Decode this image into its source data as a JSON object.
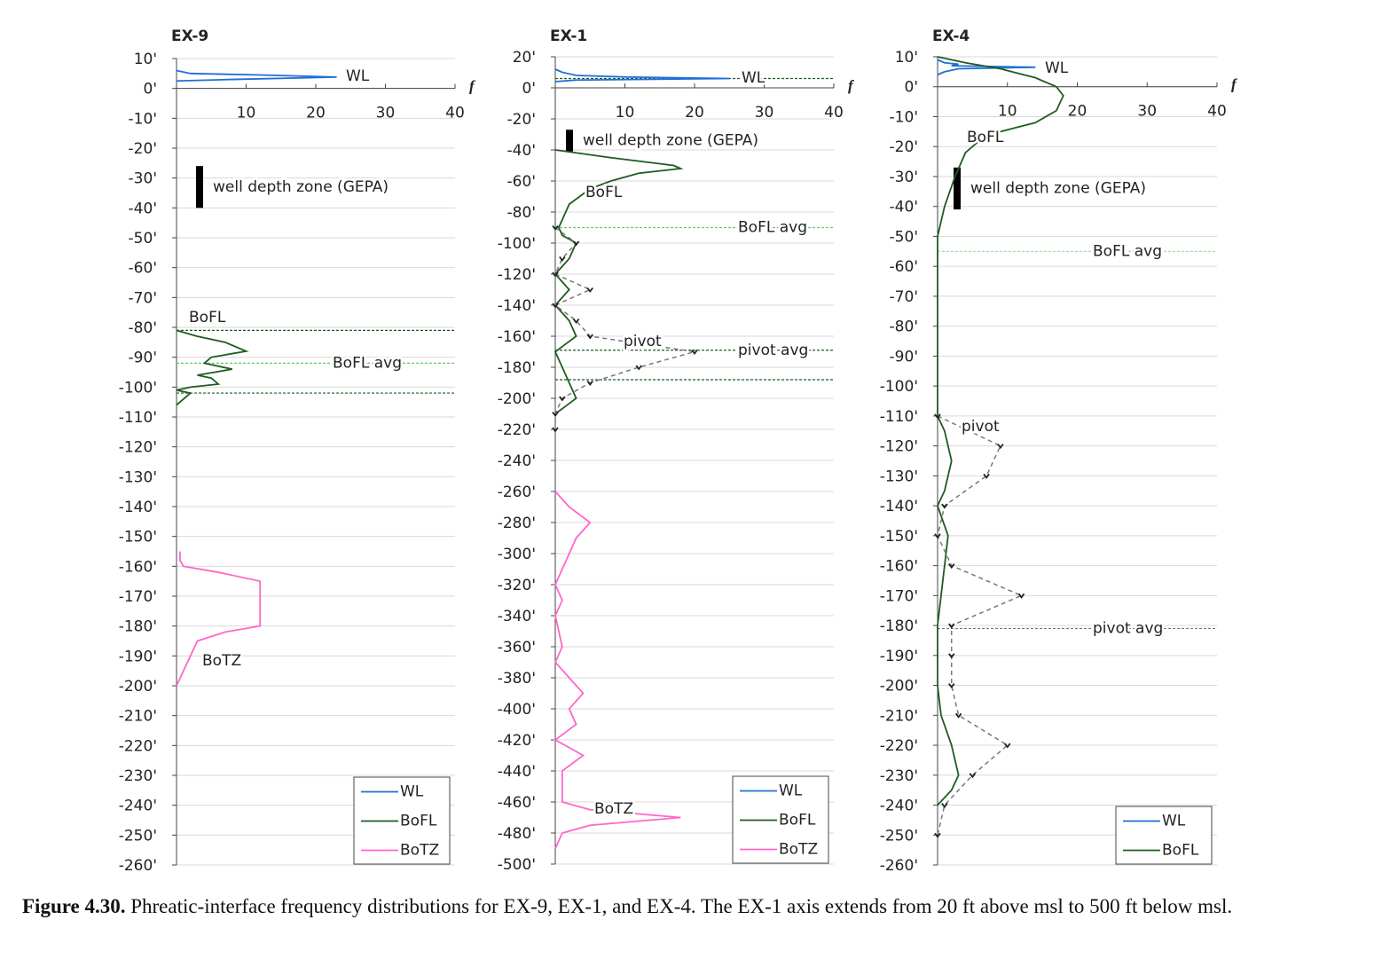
{
  "chart_data": [
    {
      "type": "line",
      "title": "EX-9",
      "x_label": "f",
      "xlim": [
        0,
        40
      ],
      "xticks": [
        10,
        20,
        30,
        40
      ],
      "ylim": [
        -260,
        10
      ],
      "grid": true,
      "legend": "lower right",
      "yticks": [
        {
          "value": 10,
          "label": "10'"
        },
        {
          "value": 0,
          "label": "0'"
        },
        {
          "value": -10,
          "label": "-10'"
        },
        {
          "value": -20,
          "label": "-20'"
        },
        {
          "value": -30,
          "label": "-30'"
        },
        {
          "value": -40,
          "label": "-40'"
        },
        {
          "value": -50,
          "label": "-50'"
        },
        {
          "value": -60,
          "label": "-60'"
        },
        {
          "value": -70,
          "label": "-70'"
        },
        {
          "value": -80,
          "label": "-80'"
        },
        {
          "value": -90,
          "label": "-90'"
        },
        {
          "value": -100,
          "label": "-100'"
        },
        {
          "value": -110,
          "label": "-110'"
        },
        {
          "value": -120,
          "label": "-120'"
        },
        {
          "value": -130,
          "label": "-130'"
        },
        {
          "value": -140,
          "label": "-140'"
        },
        {
          "value": -150,
          "label": "-150'"
        },
        {
          "value": -160,
          "label": "-160'"
        },
        {
          "value": -170,
          "label": "-170'"
        },
        {
          "value": -180,
          "label": "-180'"
        },
        {
          "value": -190,
          "label": "-190'"
        },
        {
          "value": -200,
          "label": "-200'"
        },
        {
          "value": -210,
          "label": "-210'"
        },
        {
          "value": -220,
          "label": "-220'"
        },
        {
          "value": -230,
          "label": "-230'"
        },
        {
          "value": -240,
          "label": "-240'"
        },
        {
          "value": -250,
          "label": "-250'"
        },
        {
          "value": -260,
          "label": "-260'"
        }
      ],
      "well_depth_zone": {
        "label": "well depth zone (GEPA)",
        "top": -26,
        "bottom": -40
      },
      "series": [
        {
          "name": "WL",
          "color": "#1f6fd6",
          "in_legend": true,
          "y": [
            6,
            5,
            4.5,
            3.8,
            3,
            2.5
          ],
          "values": [
            0,
            2,
            12,
            23,
            8,
            0
          ]
        },
        {
          "name": "BoFL",
          "color": "#1f5c1f",
          "in_legend": true,
          "y": [
            -81,
            -83,
            -85,
            -88,
            -90,
            -92,
            -94,
            -96,
            -97,
            -99,
            -100,
            -101,
            -102,
            -104,
            -106
          ],
          "values": [
            0,
            3,
            7,
            10,
            5,
            4,
            8,
            3,
            5,
            6,
            2,
            0,
            2,
            1,
            0
          ]
        },
        {
          "name": "BoTZ",
          "color": "#ff66cc",
          "in_legend": true,
          "y": [
            -155,
            -158,
            -160,
            -162,
            -165,
            -170,
            -175,
            -180,
            -182,
            -185,
            -190,
            -195,
            -200
          ],
          "values": [
            0.5,
            0.5,
            1,
            6,
            12,
            12,
            12,
            12,
            7,
            3,
            2,
            1,
            0
          ]
        }
      ],
      "hlines": [
        {
          "y": -81,
          "color": "#1f5c1f"
        },
        {
          "y": -92,
          "color": "#66cc66",
          "label": "BoFL avg",
          "label_color": "#1f5c1f"
        },
        {
          "y": -102,
          "color": "#1f5c1f"
        }
      ]
    },
    {
      "type": "line",
      "title": "EX-1",
      "x_label": "f",
      "xlim": [
        0,
        40
      ],
      "xticks": [
        10,
        20,
        30,
        40
      ],
      "ylim": [
        -500,
        20
      ],
      "grid": true,
      "legend": "lower right",
      "yticks": [
        {
          "value": 20,
          "label": "20'"
        },
        {
          "value": 0,
          "label": "0'"
        },
        {
          "value": -20,
          "label": "-20'"
        },
        {
          "value": -40,
          "label": "-40'"
        },
        {
          "value": -60,
          "label": "-60'"
        },
        {
          "value": -80,
          "label": "-80'"
        },
        {
          "value": -100,
          "label": "-100'"
        },
        {
          "value": -120,
          "label": "-120'"
        },
        {
          "value": -140,
          "label": "-140'"
        },
        {
          "value": -160,
          "label": "-160'"
        },
        {
          "value": -180,
          "label": "-180'"
        },
        {
          "value": -200,
          "label": "-200'"
        },
        {
          "value": -220,
          "label": "-220'"
        },
        {
          "value": -240,
          "label": "-240'"
        },
        {
          "value": -260,
          "label": "-260'"
        },
        {
          "value": -280,
          "label": "-280'"
        },
        {
          "value": -300,
          "label": "-300'"
        },
        {
          "value": -320,
          "label": "-320'"
        },
        {
          "value": -340,
          "label": "-340'"
        },
        {
          "value": -360,
          "label": "-360'"
        },
        {
          "value": -380,
          "label": "-380'"
        },
        {
          "value": -400,
          "label": "-400'"
        },
        {
          "value": -420,
          "label": "-420'"
        },
        {
          "value": -440,
          "label": "-440'"
        },
        {
          "value": -460,
          "label": "-460'"
        },
        {
          "value": -480,
          "label": "-480'"
        },
        {
          "value": -500,
          "label": "-500'"
        }
      ],
      "well_depth_zone": {
        "label": "well depth zone (GEPA)",
        "top": -27,
        "bottom": -41
      },
      "series": [
        {
          "name": "WL",
          "color": "#1f6fd6",
          "in_legend": true,
          "y": [
            12,
            10,
            8,
            7,
            6,
            5,
            4
          ],
          "values": [
            0,
            1,
            3,
            10,
            25,
            3,
            0
          ]
        },
        {
          "name": "BoFL",
          "color": "#1f5c1f",
          "in_legend": true,
          "y": [
            -40,
            -45,
            -50,
            -52,
            -55,
            -60,
            -65,
            -75,
            -85,
            -90,
            -95,
            -100,
            -110,
            -120,
            -130,
            -140,
            -150,
            -160,
            -170,
            -180,
            -190,
            -200,
            -210
          ],
          "values": [
            0,
            8,
            17,
            18,
            12,
            8,
            5,
            2,
            1,
            0.5,
            1,
            3,
            2,
            0,
            2,
            0,
            2,
            3,
            0,
            1,
            2,
            3,
            0
          ]
        },
        {
          "name": "pivot",
          "color": "#777777",
          "dash": true,
          "markers": true,
          "in_legend": false,
          "y": [
            -90,
            -100,
            -110,
            -120,
            -130,
            -140,
            -150,
            -160,
            -170,
            -180,
            -190,
            -200,
            -210,
            -220
          ],
          "values": [
            0,
            3,
            1,
            0,
            5,
            0,
            3,
            5,
            20,
            12,
            5,
            1,
            0,
            0
          ]
        },
        {
          "name": "BoTZ",
          "color": "#ff66cc",
          "in_legend": true,
          "y": [
            -260,
            -270,
            -280,
            -290,
            -300,
            -320,
            -330,
            -340,
            -360,
            -370,
            -380,
            -390,
            -400,
            -410,
            -420,
            -430,
            -440,
            -460,
            -465,
            -470,
            -475,
            -480,
            -490
          ],
          "values": [
            0,
            2,
            5,
            3,
            2,
            0,
            1,
            0,
            1,
            0,
            2,
            4,
            2,
            3,
            0,
            4,
            1,
            1,
            5,
            18,
            5,
            1,
            0
          ]
        }
      ],
      "hlines": [
        {
          "y": 6,
          "color": "#1f5c1f"
        },
        {
          "y": -90,
          "color": "#66cc66",
          "label": "BoFL avg",
          "label_color": "#1f5c1f"
        },
        {
          "y": -169,
          "color": "#1f5c1f",
          "label": "pivot avg",
          "label_color": "#222222"
        },
        {
          "y": -188,
          "color": "#1f5c1f"
        }
      ]
    },
    {
      "type": "line",
      "title": "EX-4",
      "x_label": "f",
      "xlim": [
        0,
        40
      ],
      "xticks": [
        10,
        20,
        30,
        40
      ],
      "ylim": [
        -260,
        10
      ],
      "grid": true,
      "legend": "lower right",
      "yticks": [
        {
          "value": 10,
          "label": "10'"
        },
        {
          "value": 0,
          "label": "0'"
        },
        {
          "value": -10,
          "label": "-10'"
        },
        {
          "value": -20,
          "label": "-20'"
        },
        {
          "value": -30,
          "label": "-30'"
        },
        {
          "value": -40,
          "label": "-40'"
        },
        {
          "value": -50,
          "label": "-50'"
        },
        {
          "value": -60,
          "label": "-60'"
        },
        {
          "value": -70,
          "label": "-70'"
        },
        {
          "value": -80,
          "label": "-80'"
        },
        {
          "value": -90,
          "label": "-90'"
        },
        {
          "value": -100,
          "label": "-100'"
        },
        {
          "value": -110,
          "label": "-110'"
        },
        {
          "value": -120,
          "label": "-120'"
        },
        {
          "value": -130,
          "label": "-130'"
        },
        {
          "value": -140,
          "label": "-140'"
        },
        {
          "value": -150,
          "label": "-150'"
        },
        {
          "value": -160,
          "label": "-160'"
        },
        {
          "value": -170,
          "label": "-170'"
        },
        {
          "value": -180,
          "label": "-180'"
        },
        {
          "value": -190,
          "label": "-190'"
        },
        {
          "value": -200,
          "label": "-200'"
        },
        {
          "value": -210,
          "label": "-210'"
        },
        {
          "value": -220,
          "label": "-220'"
        },
        {
          "value": -230,
          "label": "-230'"
        },
        {
          "value": -240,
          "label": "-240'"
        },
        {
          "value": -250,
          "label": "-250'"
        },
        {
          "value": -260,
          "label": "-260'"
        }
      ],
      "well_depth_zone": {
        "label": "well depth zone (GEPA)",
        "top": -27,
        "bottom": -41
      },
      "series": [
        {
          "name": "WL",
          "color": "#1f6fd6",
          "in_legend": true,
          "y": [
            9,
            8,
            7.5,
            7,
            6.5,
            6,
            5,
            4
          ],
          "values": [
            0,
            1,
            3,
            2,
            14,
            3,
            1,
            0
          ]
        },
        {
          "name": "BoFL",
          "color": "#1f5c1f",
          "in_legend": true,
          "y": [
            10,
            8,
            6,
            3,
            0,
            -3,
            -8,
            -12,
            -15,
            -18,
            -22,
            -30,
            -40,
            -50,
            -110,
            -115,
            -125,
            -135,
            -140,
            -150,
            -160,
            -170,
            -180,
            -200,
            -210,
            -220,
            -230,
            -235,
            -240
          ],
          "values": [
            0,
            4,
            9,
            14,
            17,
            18,
            17,
            14,
            9,
            6,
            4,
            2.5,
            1,
            0,
            0,
            1,
            2,
            1,
            0,
            1.5,
            1,
            0.5,
            0,
            0,
            0.5,
            2,
            3,
            2,
            0
          ]
        },
        {
          "name": "pivot",
          "color": "#777777",
          "dash": true,
          "markers": true,
          "in_legend": false,
          "y": [
            -110,
            -120,
            -130,
            -140,
            -150,
            -160,
            -170,
            -180,
            -190,
            -200,
            -210,
            -220,
            -230,
            -240,
            -250
          ],
          "values": [
            0,
            9,
            7,
            1,
            0,
            2,
            12,
            2,
            2,
            2,
            3,
            10,
            5,
            1,
            0
          ]
        }
      ],
      "hlines": [
        {
          "y": -55,
          "color": "#99dd99",
          "label": "BoFL avg",
          "label_color": "#1f5c1f"
        },
        {
          "y": -181,
          "color": "#777777",
          "label": "pivot avg",
          "label_color": "#222222"
        }
      ]
    }
  ],
  "caption": {
    "label": "Figure 4.30.",
    "text": "Phreatic-interface frequency distributions for EX-9, EX-1, and EX-4. The EX-1 axis extends from 20 ft above msl to 500 ft below msl."
  }
}
